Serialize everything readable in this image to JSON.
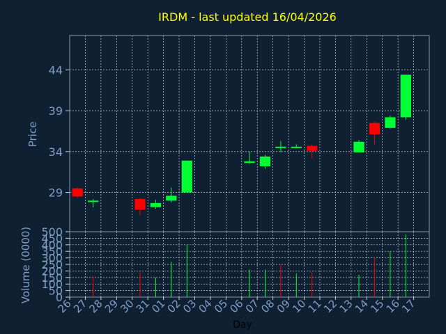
{
  "colors": {
    "background": "#102033",
    "title": "#ffff00",
    "axis_text": "#7f9fc6",
    "grid": "#c8d4e0",
    "up": "#00ff33",
    "down": "#ff0000"
  },
  "chart_data": [
    {
      "type": "candlestick",
      "title": "IRDM - last updated 16/04/2026",
      "ylabel": "Price",
      "ylim": [
        24.2,
        48.2
      ],
      "yticks": [
        29,
        34,
        39,
        44
      ],
      "grid": true,
      "categories": [
        "26",
        "27",
        "28",
        "29",
        "30",
        "31",
        "01",
        "02",
        "03",
        "04",
        "05",
        "06",
        "07",
        "08",
        "09",
        "10",
        "11",
        "12",
        "13",
        "14",
        "15",
        "16",
        "17"
      ],
      "candles": [
        {
          "x": "26",
          "open": 29.5,
          "high": 29.6,
          "low": 28.4,
          "close": 28.5
        },
        {
          "x": "27",
          "open": 28.0,
          "high": 28.2,
          "low": 27.2,
          "close": 28.0
        },
        {
          "x": "30",
          "open": 28.2,
          "high": 28.3,
          "low": 26.2,
          "close": 26.9
        },
        {
          "x": "31",
          "open": 27.2,
          "high": 28.1,
          "low": 27.0,
          "close": 27.7
        },
        {
          "x": "01",
          "open": 28.0,
          "high": 29.6,
          "low": 27.8,
          "close": 28.6
        },
        {
          "x": "02",
          "open": 29.0,
          "high": 32.9,
          "low": 29.0,
          "close": 32.9
        },
        {
          "x": "06",
          "open": 32.6,
          "high": 34.0,
          "low": 32.5,
          "close": 32.8
        },
        {
          "x": "07",
          "open": 32.2,
          "high": 33.6,
          "low": 31.9,
          "close": 33.4
        },
        {
          "x": "08",
          "open": 34.6,
          "high": 35.3,
          "low": 33.9,
          "close": 34.6
        },
        {
          "x": "09",
          "open": 34.5,
          "high": 34.9,
          "low": 34.4,
          "close": 34.6
        },
        {
          "x": "10",
          "open": 34.7,
          "high": 34.9,
          "low": 33.2,
          "close": 34.1
        },
        {
          "x": "13",
          "open": 33.9,
          "high": 35.4,
          "low": 33.9,
          "close": 35.2
        },
        {
          "x": "14",
          "open": 37.5,
          "high": 37.7,
          "low": 34.9,
          "close": 36.1
        },
        {
          "x": "15",
          "open": 36.9,
          "high": 38.4,
          "low": 36.8,
          "close": 38.2
        },
        {
          "x": "16",
          "open": 38.2,
          "high": 43.4,
          "low": 37.9,
          "close": 43.4
        }
      ]
    },
    {
      "type": "bar",
      "xlabel": "Day",
      "ylabel": "Volume (0000)",
      "ylim": [
        0,
        500
      ],
      "yticks": [
        0,
        50,
        100,
        150,
        200,
        250,
        300,
        350,
        400,
        450,
        500
      ],
      "grid": true,
      "categories": [
        "26",
        "27",
        "28",
        "29",
        "30",
        "31",
        "01",
        "02",
        "03",
        "04",
        "05",
        "06",
        "07",
        "08",
        "09",
        "10",
        "11",
        "12",
        "13",
        "14",
        "15",
        "16",
        "17"
      ],
      "bars": [
        {
          "x": "27",
          "value": 160,
          "direction": "down"
        },
        {
          "x": "30",
          "value": 190,
          "direction": "down"
        },
        {
          "x": "31",
          "value": 150,
          "direction": "up"
        },
        {
          "x": "01",
          "value": 270,
          "direction": "up"
        },
        {
          "x": "02",
          "value": 400,
          "direction": "up"
        },
        {
          "x": "06",
          "value": 210,
          "direction": "up"
        },
        {
          "x": "07",
          "value": 210,
          "direction": "up"
        },
        {
          "x": "08",
          "value": 250,
          "direction": "down"
        },
        {
          "x": "09",
          "value": 180,
          "direction": "up"
        },
        {
          "x": "10",
          "value": 190,
          "direction": "down"
        },
        {
          "x": "13",
          "value": 170,
          "direction": "up"
        },
        {
          "x": "14",
          "value": 300,
          "direction": "down"
        },
        {
          "x": "15",
          "value": 350,
          "direction": "up"
        },
        {
          "x": "16",
          "value": 480,
          "direction": "up"
        }
      ]
    }
  ]
}
